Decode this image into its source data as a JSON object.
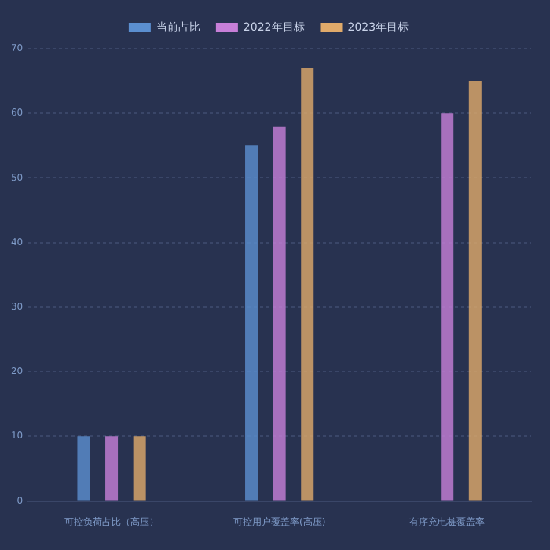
{
  "chart_data": {
    "type": "bar",
    "categories": [
      "可控负荷占比（高压）",
      "可控用户覆盖率(高压)",
      "有序充电桩覆盖率"
    ],
    "series": [
      {
        "name": "当前占比",
        "color": "#5b8fd0",
        "values": [
          10,
          55,
          0
        ]
      },
      {
        "name": "2022年目标",
        "color": "#c77fd8",
        "values": [
          10,
          58,
          60
        ]
      },
      {
        "name": "2023年目标",
        "color": "#e0aa6a",
        "values": [
          10,
          67,
          65
        ]
      }
    ],
    "ylim": [
      0,
      70
    ],
    "yticks": [
      0,
      10,
      20,
      30,
      40,
      50,
      60,
      70
    ],
    "grid": "y",
    "legend": "top"
  }
}
